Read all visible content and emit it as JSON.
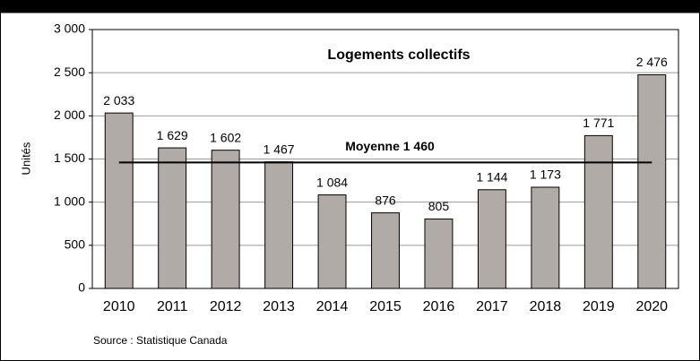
{
  "chart_data": {
    "type": "bar",
    "title": "Logements collectifs",
    "y_label": "Unités",
    "source": "Source : Statistique Canada",
    "categories": [
      "2010",
      "2011",
      "2012",
      "2013",
      "2014",
      "2015",
      "2016",
      "2017",
      "2018",
      "2019",
      "2020"
    ],
    "values": [
      2033,
      1629,
      1602,
      1467,
      1084,
      876,
      805,
      1144,
      1173,
      1771,
      2476
    ],
    "value_labels": [
      "2 033",
      "1 629",
      "1 602",
      "1 467",
      "1 084",
      "876",
      "805",
      "1 144",
      "1 173",
      "1 771",
      "2 476"
    ],
    "color": "#b1aba7",
    "average": {
      "value": 1460,
      "label": "Moyenne 1 460"
    },
    "ylim": [
      0,
      3000
    ],
    "yticks": [
      0,
      500,
      {
        "value": 1000,
        "label": "1 000"
      },
      {
        "value": 1500,
        "label": "1 500"
      },
      {
        "value": 2000,
        "label": "2 000"
      },
      {
        "value": 2500,
        "label": "2 500"
      },
      {
        "value": 3000,
        "label": "3 000"
      }
    ],
    "grid": true
  }
}
